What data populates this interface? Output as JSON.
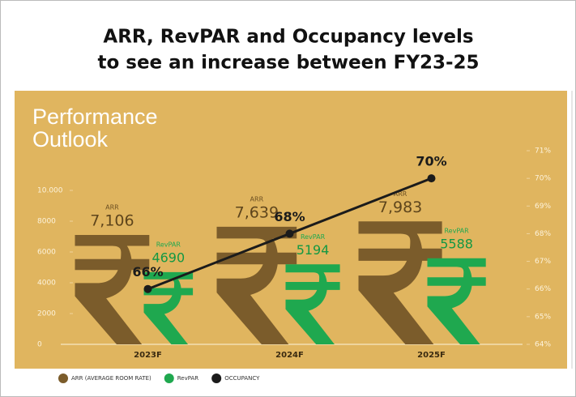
{
  "chart_data": {
    "type": "bar",
    "title": [
      "ARR, RevPAR and Occupancy levels",
      "to see an increase between FY23-25"
    ],
    "panel_title": [
      "Performance",
      "Outlook"
    ],
    "categories": [
      "2023F",
      "2024F",
      "2025F"
    ],
    "series": [
      {
        "name": "ARR (AVERAGE ROOM RATE)",
        "short_name": "ARR",
        "color": "#7b5c2b",
        "values": [
          7106,
          7639,
          7983
        ],
        "value_labels": [
          "7,106",
          "7,639",
          "7,983"
        ]
      },
      {
        "name": "RevPAR",
        "short_name": "RevPAR",
        "color": "#1fa84f",
        "values": [
          4690,
          5194,
          5588
        ]
      },
      {
        "name": "OCCUPANCY",
        "color": "#1b1b1b",
        "type": "line",
        "axis": "y2",
        "values": [
          66,
          68,
          70
        ],
        "value_labels": [
          "66%",
          "68%",
          "70%"
        ]
      }
    ],
    "ylim": [
      0,
      12000
    ],
    "yticks": [
      0,
      2000,
      4000,
      6000,
      8000,
      {
        "value": 10000,
        "label": "10.000"
      }
    ],
    "y2lim": [
      64,
      71
    ],
    "y2ticks": [
      {
        "value": 64,
        "label": "64%"
      },
      {
        "value": 65,
        "label": "65%"
      },
      {
        "value": 66,
        "label": "66%"
      },
      {
        "value": 67,
        "label": "67%"
      },
      {
        "value": 68,
        "label": "68%"
      },
      {
        "value": 69,
        "label": "69%"
      },
      {
        "value": 70,
        "label": "70%"
      },
      {
        "value": 71,
        "label": "71%"
      }
    ],
    "legend": "bottom",
    "background": "#e0b55f"
  }
}
